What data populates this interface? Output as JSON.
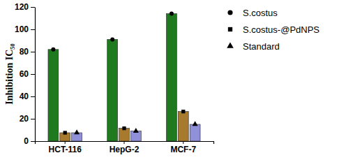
{
  "chart_data": {
    "type": "bar",
    "y_label": "Inhibition IC₅₀",
    "categories": [
      "HCT-116",
      "HepG-2",
      "MCF-7"
    ],
    "series": [
      {
        "name": "S.costus",
        "color": "#1f7a1f",
        "marker": "circle",
        "values": [
          82,
          91,
          114
        ]
      },
      {
        "name": "S.costus-@PdNPS",
        "color": "#a87a2e",
        "marker": "square",
        "values": [
          7.5,
          11.5,
          26.5
        ]
      },
      {
        "name": "Standard",
        "color": "#9090d8",
        "marker": "triangle",
        "values": [
          7.5,
          9,
          15
        ]
      }
    ],
    "ylim": [
      0,
      120
    ],
    "yticks": [
      0,
      20,
      40,
      60,
      80,
      100,
      120
    ],
    "grid": false,
    "legend": "upper right"
  }
}
